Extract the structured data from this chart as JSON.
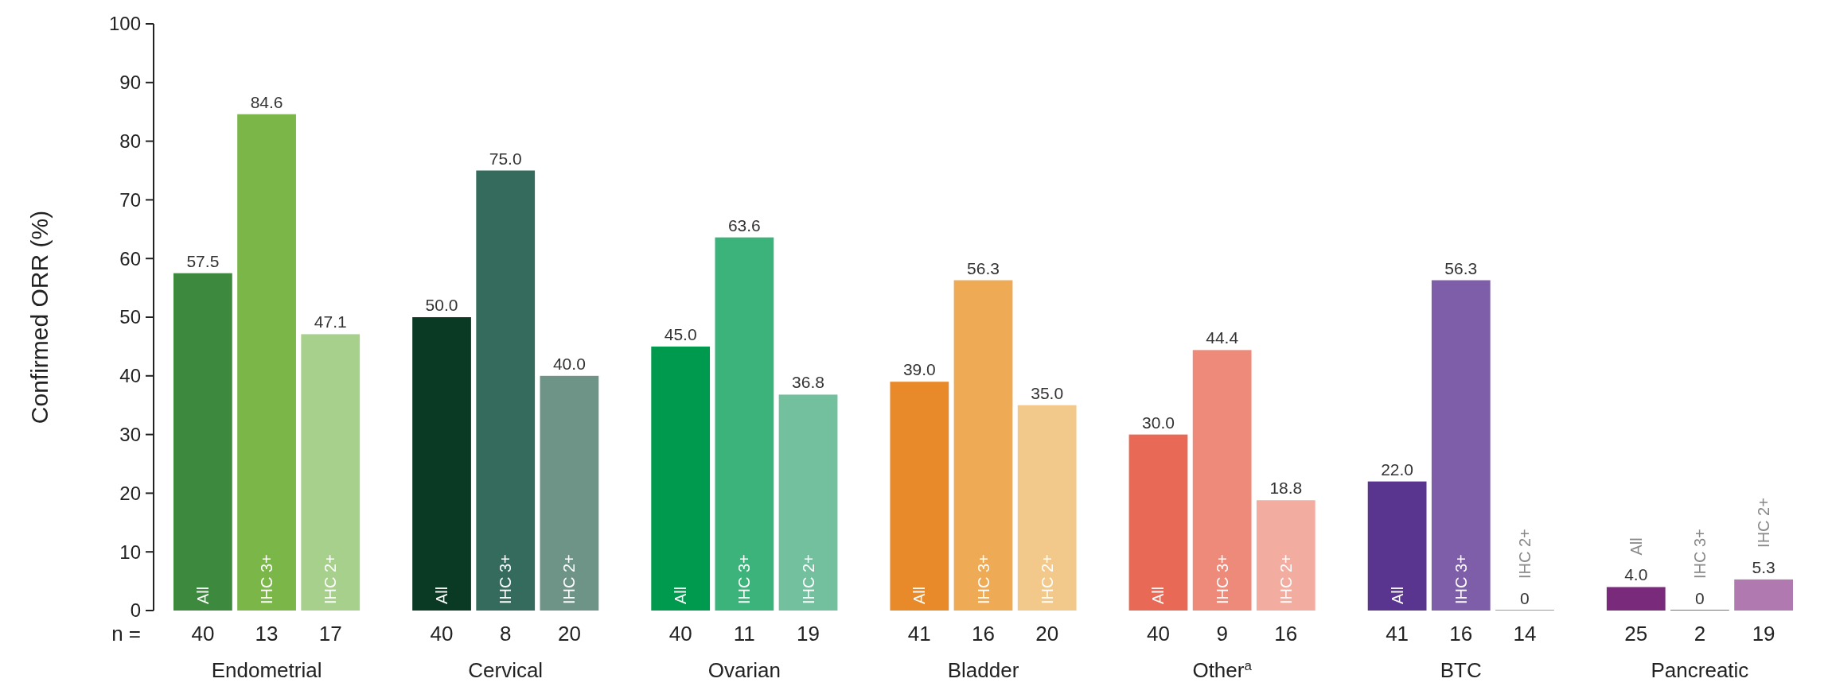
{
  "chart_data": {
    "type": "bar",
    "ylabel": "Confirmed ORR (%)",
    "categories": [
      "Endometrial",
      "Cervical",
      "Ovarian",
      "Bladder",
      "Other$^{a}$",
      "BTC",
      "Pancreatic"
    ],
    "series": [
      {
        "name": "All",
        "colors": [
          "#3d8a3e",
          "#0a3a24",
          "#009a4e",
          "#e8892a",
          "#e86a56",
          "#5a3590",
          "#7a2a7a"
        ],
        "values": [
          57.5,
          50.0,
          45.0,
          39.0,
          30.0,
          22.0,
          4.0
        ],
        "value_labels": [
          "57.5",
          "50.0",
          "45.0",
          "39.0",
          "30.0",
          "22.0",
          "4.0"
        ]
      },
      {
        "name": "IHC 3+",
        "colors": [
          "#7ab648",
          "#356b5c",
          "#3cb37a",
          "#eeaa55",
          "#ee8a7a",
          "#7e5ea8",
          "#9a5a9a"
        ],
        "values": [
          84.6,
          75.0,
          63.6,
          56.3,
          44.4,
          56.3,
          0
        ],
        "value_labels": [
          "84.6",
          "75.0",
          "63.6",
          "56.3",
          "44.4",
          "56.3",
          "0"
        ]
      },
      {
        "name": "IHC 2+",
        "colors": [
          "#a8d08d",
          "#6e9488",
          "#72c09e",
          "#f2c98a",
          "#f2aca0",
          "#a68bc4",
          "#b07ab0"
        ],
        "values": [
          47.1,
          40.0,
          36.8,
          35.0,
          18.8,
          0,
          5.3
        ],
        "value_labels": [
          "47.1",
          "40.0",
          "36.8",
          "35.0",
          "18.8",
          "0",
          "5.3"
        ]
      }
    ],
    "ylim": [
      0,
      100
    ],
    "yticks": [
      0,
      10,
      20,
      30,
      40,
      50,
      60,
      70,
      80,
      90,
      100
    ],
    "annotations": [
      "n =",
      "40",
      "13",
      "17",
      "40",
      "8",
      "20",
      "40",
      "11",
      "19",
      "41",
      "16",
      "20",
      "40",
      "9",
      "16",
      "41",
      "16",
      "14",
      "25",
      "2",
      "19"
    ]
  }
}
